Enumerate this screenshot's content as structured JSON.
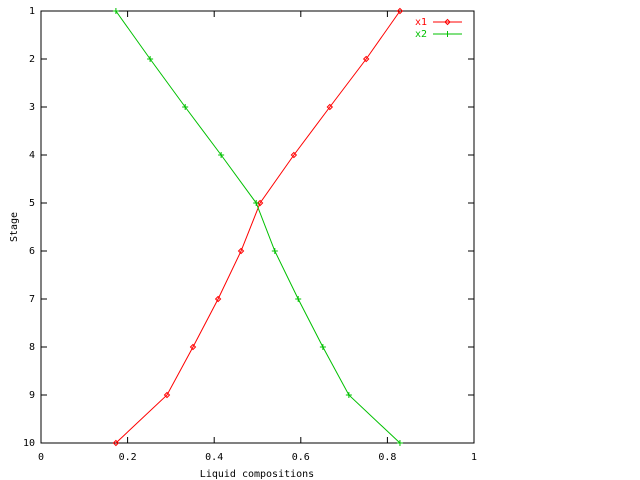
{
  "chart_data": {
    "type": "line",
    "x_label": "Liquid compositions",
    "y_label": "Stage",
    "xlim": [
      0,
      1
    ],
    "xticks": [
      0,
      0.2,
      0.4,
      0.6,
      0.8,
      1
    ],
    "ylim": [
      1,
      10
    ],
    "yticks": [
      1,
      2,
      3,
      4,
      5,
      6,
      7,
      8,
      9,
      10
    ],
    "y_inverted": true,
    "legend": "top-right",
    "series": [
      {
        "name": "x1",
        "color": "#ff0000",
        "marker": "diamond",
        "x": [
          0.829,
          0.751,
          0.667,
          0.584,
          0.506,
          0.462,
          0.409,
          0.351,
          0.291,
          0.173
        ],
        "values": [
          1,
          2,
          3,
          4,
          5,
          6,
          7,
          8,
          9,
          10
        ]
      },
      {
        "name": "x2",
        "color": "#00c000",
        "marker": "plus",
        "x": [
          0.173,
          0.252,
          0.333,
          0.416,
          0.497,
          0.54,
          0.594,
          0.651,
          0.711,
          0.829
        ],
        "values": [
          1,
          2,
          3,
          4,
          5,
          6,
          7,
          8,
          9,
          10
        ]
      }
    ]
  }
}
